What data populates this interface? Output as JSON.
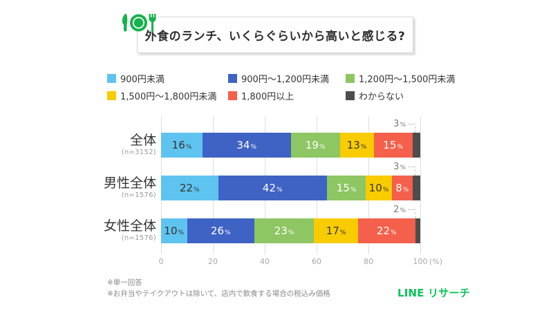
{
  "header": {
    "title": "外食のランチ、いくらぐらいから高いと感じる?",
    "icon": "restaurant-plate-icon",
    "icon_color": "#16B24C"
  },
  "chart_data": {
    "type": "bar",
    "variant": "horizontal-stacked",
    "categories": [
      "全体",
      "男性全体",
      "女性全体"
    ],
    "category_notes": [
      "(n=3152)",
      "(n=1576)",
      "(n=1576)"
    ],
    "series": [
      {
        "name": "900円未満",
        "color": "#5FC3EF",
        "label_color": "#333333",
        "values": [
          16,
          22,
          10
        ]
      },
      {
        "name": "900円～1,200円未満",
        "color": "#3E63C4",
        "label_color": "#FFFFFF",
        "values": [
          34,
          42,
          26
        ]
      },
      {
        "name": "1,200円～1,500円未満",
        "color": "#8DC663",
        "label_color": "#FFFFFF",
        "values": [
          19,
          15,
          23
        ]
      },
      {
        "name": "1,500円～1,800円未満",
        "color": "#F8CC00",
        "label_color": "#333333",
        "values": [
          13,
          10,
          17
        ]
      },
      {
        "name": "1,800円以上",
        "color": "#F4604C",
        "label_color": "#FFFFFF",
        "values": [
          15,
          8,
          22
        ]
      },
      {
        "name": "わからない",
        "color": "#4D4D4D",
        "label_color": "#7A7A7A",
        "label_outside": true,
        "values": [
          3,
          3,
          2
        ]
      }
    ],
    "value_suffix": "%",
    "x_ticks": [
      0,
      20,
      40,
      60,
      80,
      100
    ],
    "x_unit": "(%)",
    "xlim": [
      0,
      100
    ],
    "grid": true,
    "legend_position": "top"
  },
  "footnotes": [
    "※単一回答",
    "※お弁当やテイクアウトは除いて、店内で飲食する場合の税込み価格"
  ],
  "brand": {
    "name": "LINE リサーチ",
    "color": "#06C755"
  }
}
